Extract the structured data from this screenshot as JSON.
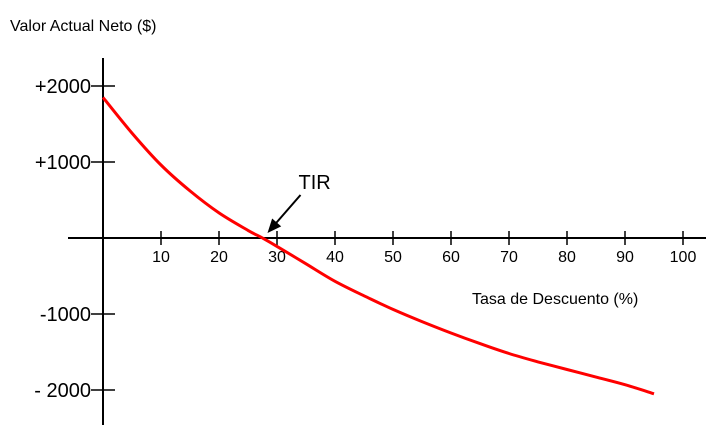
{
  "chart_data": {
    "type": "line",
    "title": "",
    "ylabel": "Valor Actual Neto ($)",
    "xlabel": "Tasa de Descuento (%)",
    "xlim": [
      0,
      100
    ],
    "ylim": [
      -2000,
      2000
    ],
    "x_ticks": [
      10,
      20,
      30,
      40,
      50,
      60,
      70,
      80,
      90,
      100
    ],
    "x_tick_labels": [
      "10",
      "20",
      "30",
      "40",
      "50",
      "60",
      "70",
      "80",
      "90",
      "100"
    ],
    "y_ticks": [
      2000,
      1000,
      -1000,
      -2000
    ],
    "y_tick_labels": [
      "+2000",
      "+1000",
      "-1000",
      "- 2000"
    ],
    "grid": false,
    "line_color": "#ff0000",
    "series": [
      {
        "x": [
          0,
          5,
          10,
          15,
          20,
          25,
          27.5,
          30,
          35,
          40,
          45,
          50,
          55,
          60,
          65,
          70,
          75,
          80,
          85,
          90,
          95
        ],
        "y": [
          1850,
          1380,
          960,
          620,
          330,
          100,
          0,
          -110,
          -340,
          -570,
          -760,
          -940,
          -1100,
          -1250,
          -1390,
          -1520,
          -1630,
          -1730,
          -1830,
          -1930,
          -2050
        ]
      }
    ],
    "annotations": [
      {
        "text": "TIR",
        "x": 27.5,
        "y": 0
      }
    ]
  }
}
